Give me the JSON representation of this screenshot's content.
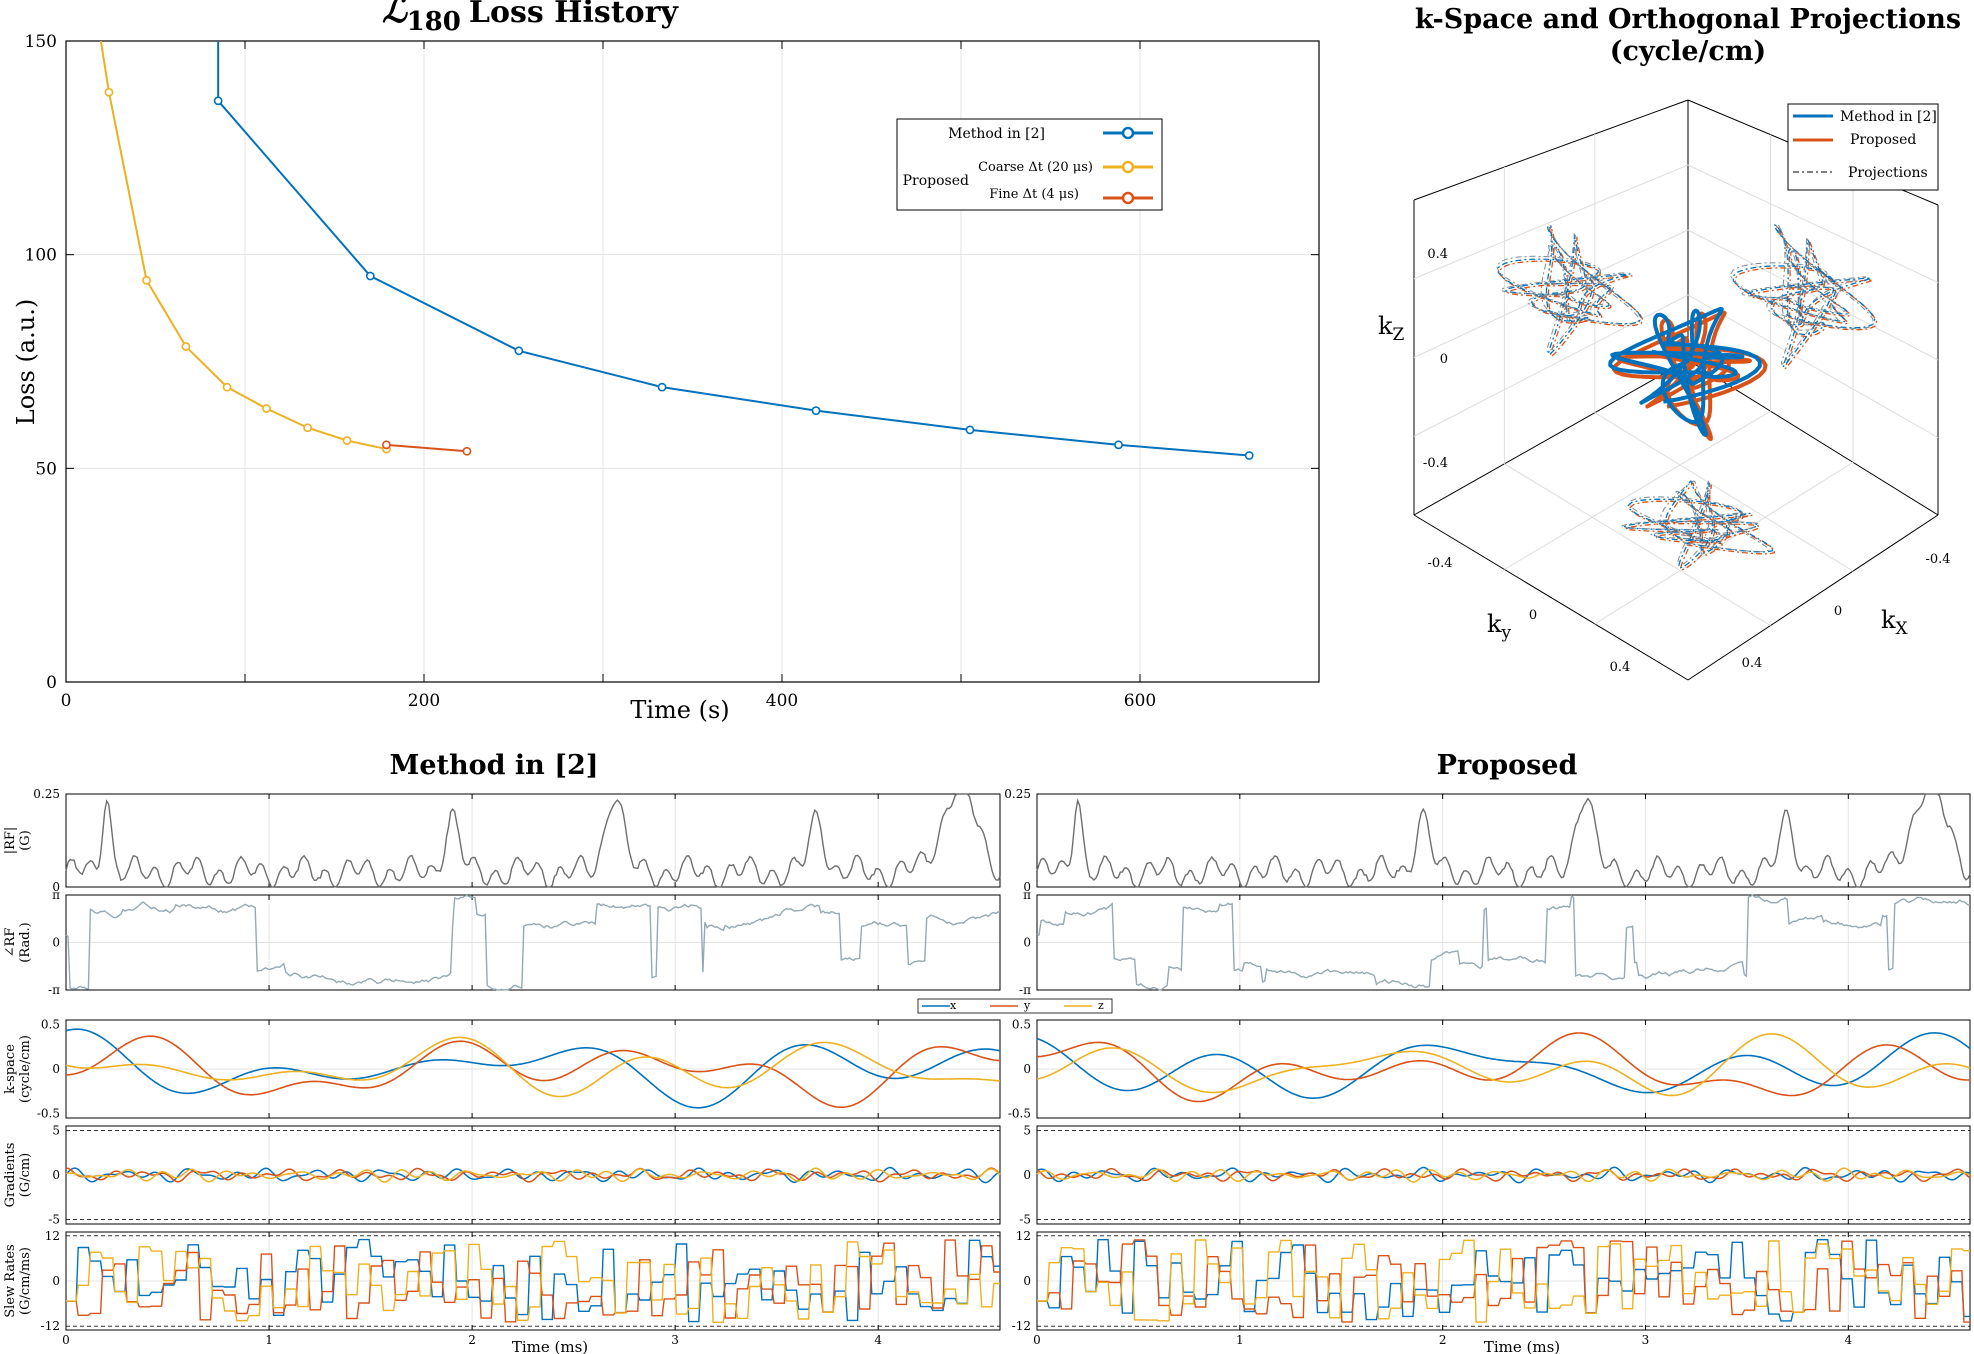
{
  "colors": {
    "blue": "#0072BD",
    "orange": "#D95319",
    "yellow": "#EDB120",
    "gray": "#6e6e6e",
    "phase": "#93a9b3"
  },
  "chart_data": [
    {
      "id": "loss",
      "type": "line",
      "title_symbol": "ℒ",
      "title_sub": "180",
      "title_rest": "Loss History",
      "xlabel": "Time (s)",
      "ylabel": "Loss (a.u.)",
      "xlim": [
        0,
        700
      ],
      "ylim": [
        0,
        150
      ],
      "xticks": [
        0,
        200,
        400,
        600
      ],
      "yticks": [
        0,
        50,
        100,
        150
      ],
      "grid": true,
      "legend": {
        "method_label": "Method in [2]",
        "group_label": "Proposed",
        "coarse_label": "Coarse Δt (20 μs)",
        "fine_label": "Fine Δt (4 μs)"
      },
      "series": [
        {
          "name": "Method in [2]",
          "color": "#0072BD",
          "x": [
            85,
            170,
            253,
            333,
            419,
            505,
            588,
            661
          ],
          "y": [
            136,
            95,
            77.5,
            69,
            63.5,
            59,
            55.5,
            53
          ]
        },
        {
          "name": "Coarse Δt (20 μs)",
          "color": "#EDB120",
          "x": [
            24,
            45,
            67,
            90,
            112,
            135,
            157,
            179
          ],
          "y": [
            138,
            94,
            78.5,
            69,
            64,
            59.5,
            56.5,
            54.5
          ]
        },
        {
          "name": "Fine Δt (4 μs)",
          "color": "#D95319",
          "x": [
            179,
            224
          ],
          "y": [
            55.5,
            54
          ]
        }
      ],
      "leadin": [
        {
          "color": "#0072BD",
          "x": [
            85,
            85
          ],
          "y": [
            150,
            136
          ]
        },
        {
          "color": "#EDB120",
          "x": [
            19.5,
            21,
            22.5,
            24
          ],
          "y": [
            150,
            146,
            142,
            138
          ]
        }
      ]
    },
    {
      "id": "kspace3d",
      "type": "line3d",
      "title_line1": "k-Space and Orthogonal Projections",
      "title_line2": "(cycle/cm)",
      "legend": {
        "method": "Method in [2]",
        "proposed": "Proposed",
        "projections": "Projections"
      },
      "axis_labels": {
        "kz": "k",
        "kz_sub": "Z",
        "ky": "k",
        "ky_sub": "y",
        "kx": "k",
        "kx_sub": "X"
      },
      "z_ticks": [
        "0.4",
        "0",
        "-0.4"
      ],
      "y_ticks": [
        "-0.4",
        "0",
        "0.4"
      ],
      "x_ticks": [
        "-0.4",
        "0",
        "0.4"
      ]
    },
    {
      "id": "waveforms",
      "type": "line",
      "panel_titles": [
        "Method in [2]",
        "Proposed"
      ],
      "xlabel": "Time (ms)",
      "xlim": [
        0,
        4.6
      ],
      "xticks": [
        "0",
        "1",
        "2",
        "3",
        "4"
      ],
      "legend": [
        "x",
        "y",
        "z"
      ],
      "rows": [
        {
          "label1": "|RF|",
          "label2": "(G)",
          "ylim": [
            0,
            0.25
          ],
          "yticks": [
            "0.25",
            "0"
          ],
          "dashed": [
            0.25
          ]
        },
        {
          "label1": "∠RF",
          "label2": "(Rad.)",
          "ylim": [
            -3.1416,
            3.1416
          ],
          "yticks": [
            "π",
            "0",
            "-π"
          ],
          "dashed": []
        },
        {
          "label1": "k-space",
          "label2": "(cycle/cm)",
          "ylim": [
            -0.55,
            0.55
          ],
          "yticks": [
            "0.5",
            "0",
            "-0.5"
          ],
          "dashed": []
        },
        {
          "label1": "Gradients",
          "label2": "(G/cm)",
          "ylim": [
            -5.5,
            5.5
          ],
          "yticks": [
            "5",
            "0",
            "-5"
          ],
          "dashed": [
            5,
            -5
          ]
        },
        {
          "label1": "Slew Rates",
          "label2": "(G/cm/ms)",
          "ylim": [
            -13,
            13
          ],
          "yticks": [
            "12",
            "0",
            "-12"
          ],
          "dashed": [
            12,
            -12
          ]
        }
      ]
    }
  ]
}
